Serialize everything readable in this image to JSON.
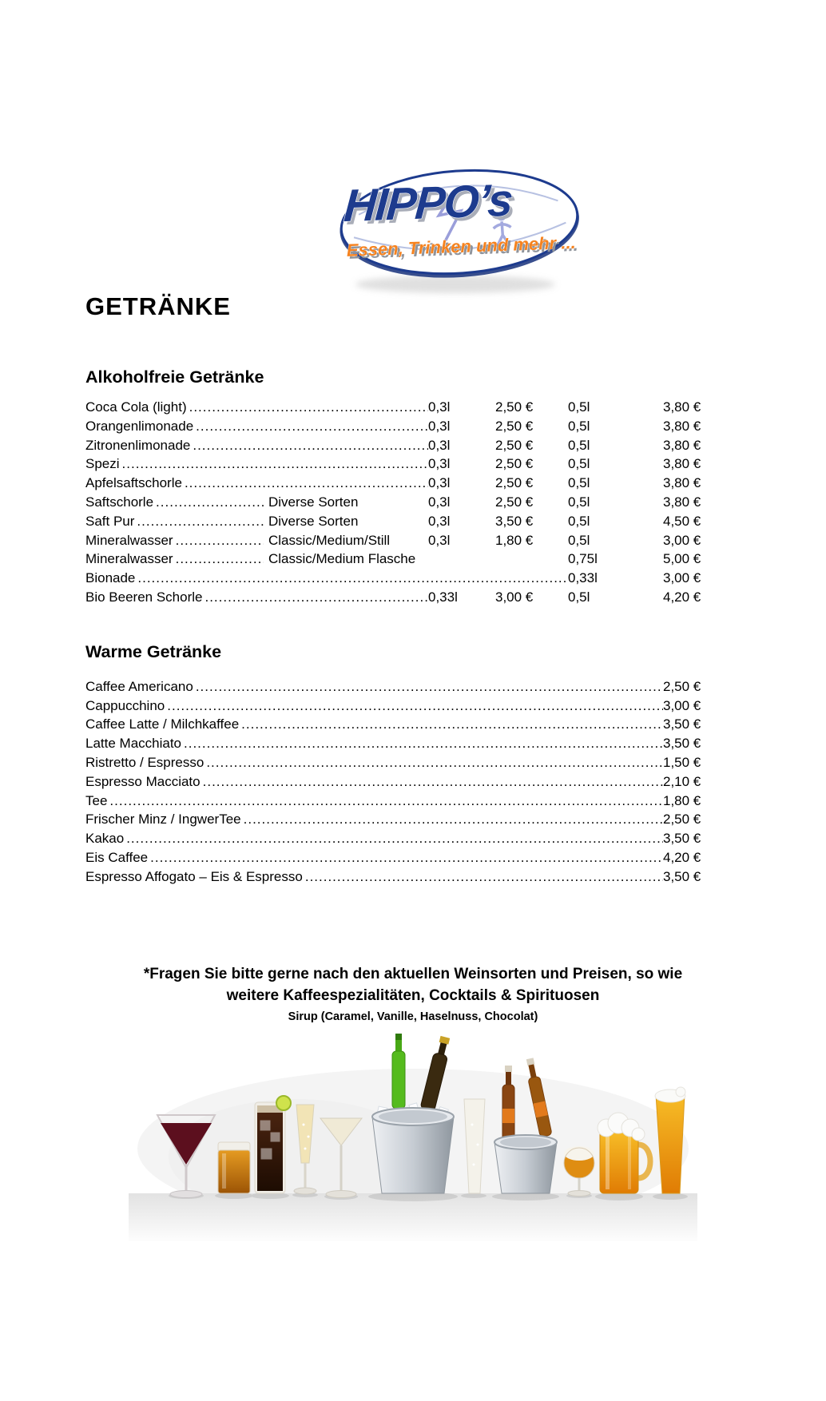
{
  "logo": {
    "brand": "HIPPO’s",
    "tagline": "Essen, Trinken und mehr ...",
    "colors": {
      "blue": "#1d3b8e",
      "orange": "#f5821f"
    }
  },
  "page_title": "GETRÄNKE",
  "sections": {
    "soft": {
      "heading": "Alkoholfreie Getränke",
      "items": [
        {
          "name": "Coca Cola (light)",
          "size1": "0,3l",
          "price1": "2,50 €",
          "size2": "0,5l",
          "price2": "3,80 €"
        },
        {
          "name": "Orangenlimonade",
          "size1": "0,3l",
          "price1": "2,50 €",
          "size2": "0,5l",
          "price2": "3,80 €"
        },
        {
          "name": "Zitronenlimonade",
          "size1": "0,3l",
          "price1": "2,50 €",
          "size2": "0,5l",
          "price2": "3,80 €"
        },
        {
          "name": "Spezi",
          "size1": "0,3l",
          "price1": "2,50 €",
          "size2": "0,5l",
          "price2": "3,80 €"
        },
        {
          "name": "Apfelsaftschorle",
          "size1": "0,3l",
          "price1": "2,50 €",
          "size2": "0,5l",
          "price2": "3,80 €"
        },
        {
          "name": "Saftschorle",
          "desc": "Diverse Sorten",
          "size1": "0,3l",
          "price1": "2,50 €",
          "size2": "0,5l",
          "price2": "3,80 €"
        },
        {
          "name": "Saft Pur",
          "desc": "Diverse Sorten",
          "size1": "0,3l",
          "price1": "3,50 €",
          "size2": "0,5l",
          "price2": "4,50 €"
        },
        {
          "name": "Mineralwasser",
          "desc": "Classic/Medium/Still",
          "size1": "0,3l",
          "price1": "1,80 €",
          "size2": "0,5l",
          "price2": "3,00 €"
        },
        {
          "name": "Mineralwasser",
          "desc": "Classic/Medium Flasche",
          "size1": "",
          "price1": "",
          "size2": "0,75l",
          "price2": "5,00 €"
        },
        {
          "name": "Bionade",
          "size2": "0,33l",
          "price2": "3,00 €"
        },
        {
          "name": "Bio Beeren Schorle",
          "size1": "0,33l",
          "price1": "3,00 €",
          "size2": "0,5l",
          "price2": "4,20 €"
        }
      ]
    },
    "warm": {
      "heading": "Warme Getränke",
      "items": [
        {
          "name": "Caffee Americano",
          "price": "2,50 €"
        },
        {
          "name": "Cappucchino",
          "price": "3,00 €"
        },
        {
          "name": "Caffee Latte / Milchkaffee",
          "price": "3,50 €"
        },
        {
          "name": "Latte Macchiato",
          "price": "3,50 €"
        },
        {
          "name": "Ristretto / Espresso",
          "price": "1,50 €"
        },
        {
          "name": "Espresso Macciato",
          "price": "2,10 €"
        },
        {
          "name": "Tee",
          "price": "1,80 €"
        },
        {
          "name": "Frischer Minz / IngwerTee",
          "price": "2,50 €"
        },
        {
          "name": "Kakao",
          "price": "3,50 €"
        },
        {
          "name": "Eis Caffee",
          "price": "4,20 €"
        },
        {
          "name": "Espresso Affogato – Eis & Espresso",
          "price": "3,50 €"
        }
      ]
    }
  },
  "footer": {
    "note_line1": "*Fragen Sie bitte gerne nach den aktuellen Weinsorten und Preisen, so wie",
    "note_line2": "weitere Kaffeespezialitäten, Cocktails & Spirituosen",
    "note_line3": "Sirup (Caramel, Vanille, Haselnuss, Chocolat)"
  }
}
